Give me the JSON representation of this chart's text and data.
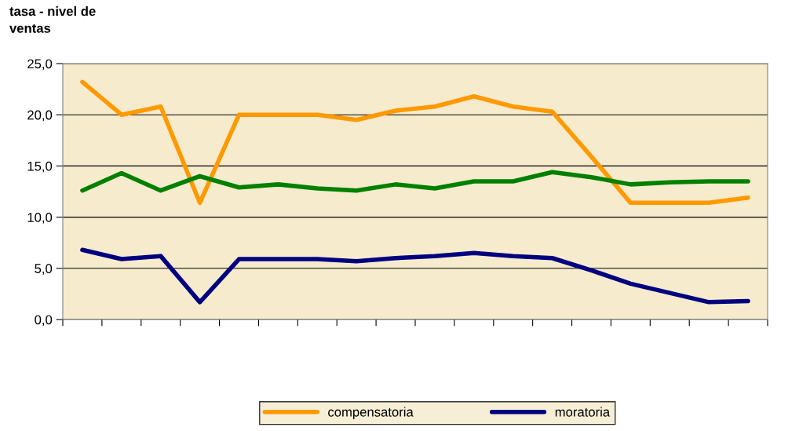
{
  "chart_data": {
    "type": "line",
    "ylabel": "tasa - nivel de\nventas",
    "categories": [
      null,
      null,
      null,
      null,
      null,
      null,
      null,
      null,
      null,
      null,
      null,
      null,
      null,
      null,
      null,
      null,
      null,
      null
    ],
    "series": [
      {
        "name": "compensatoria",
        "color": "#ff9900",
        "values": [
          23.2,
          20.0,
          20.8,
          11.4,
          20.0,
          20.0,
          20.0,
          19.5,
          20.4,
          20.8,
          21.8,
          20.8,
          20.3,
          15.9,
          11.4,
          11.4,
          11.4,
          11.9
        ]
      },
      {
        "name": "moratoria",
        "color": "#000080",
        "values": [
          6.8,
          5.9,
          6.2,
          1.7,
          5.9,
          5.9,
          5.9,
          5.7,
          6.0,
          6.2,
          6.5,
          6.2,
          6.0,
          4.8,
          3.5,
          2.6,
          1.7,
          1.8
        ]
      },
      {
        "color": "#008000",
        "values": [
          12.6,
          14.3,
          12.6,
          14.0,
          12.9,
          13.2,
          12.8,
          12.6,
          13.2,
          12.8,
          13.5,
          13.5,
          14.4,
          13.9,
          13.2,
          13.4,
          13.5,
          13.5
        ]
      }
    ],
    "ylim": [
      0,
      25
    ],
    "yticks": [
      {
        "value": 0,
        "label": "0,0"
      },
      {
        "value": 5,
        "label": "5,0"
      },
      {
        "value": 10,
        "label": "10,0"
      },
      {
        "value": 15,
        "label": "15,0"
      },
      {
        "value": 20,
        "label": "20,0"
      },
      {
        "value": 25,
        "label": "25,0"
      }
    ],
    "grid": "y",
    "legend": "bottom",
    "marker": "none",
    "line_style": "solid"
  }
}
